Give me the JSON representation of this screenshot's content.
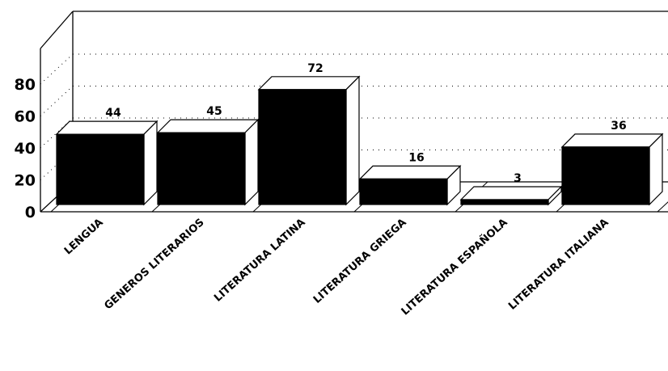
{
  "chart_data": {
    "type": "bar",
    "style": "3d",
    "categories": [
      "LENGUA",
      "GENEROS LITERARIOS",
      "LITERATURA LATINA",
      "LITERATURA GRIEGA",
      "LITERATURA ESPAÑOLA",
      "LITERATURA ITALIANA"
    ],
    "values": [
      44,
      45,
      72,
      16,
      3,
      36
    ],
    "data_labels": [
      "44",
      "45",
      "72",
      "16",
      "3",
      "36"
    ],
    "y_ticks": [
      "0",
      "20",
      "40",
      "60",
      "80"
    ],
    "ylim": [
      0,
      80
    ],
    "grid": "dotted horizontal",
    "legend": "none",
    "colors": {
      "bar_front": "#000000",
      "bar_side": "#ffffff",
      "outline": "#000000",
      "background": "#ffffff"
    }
  }
}
